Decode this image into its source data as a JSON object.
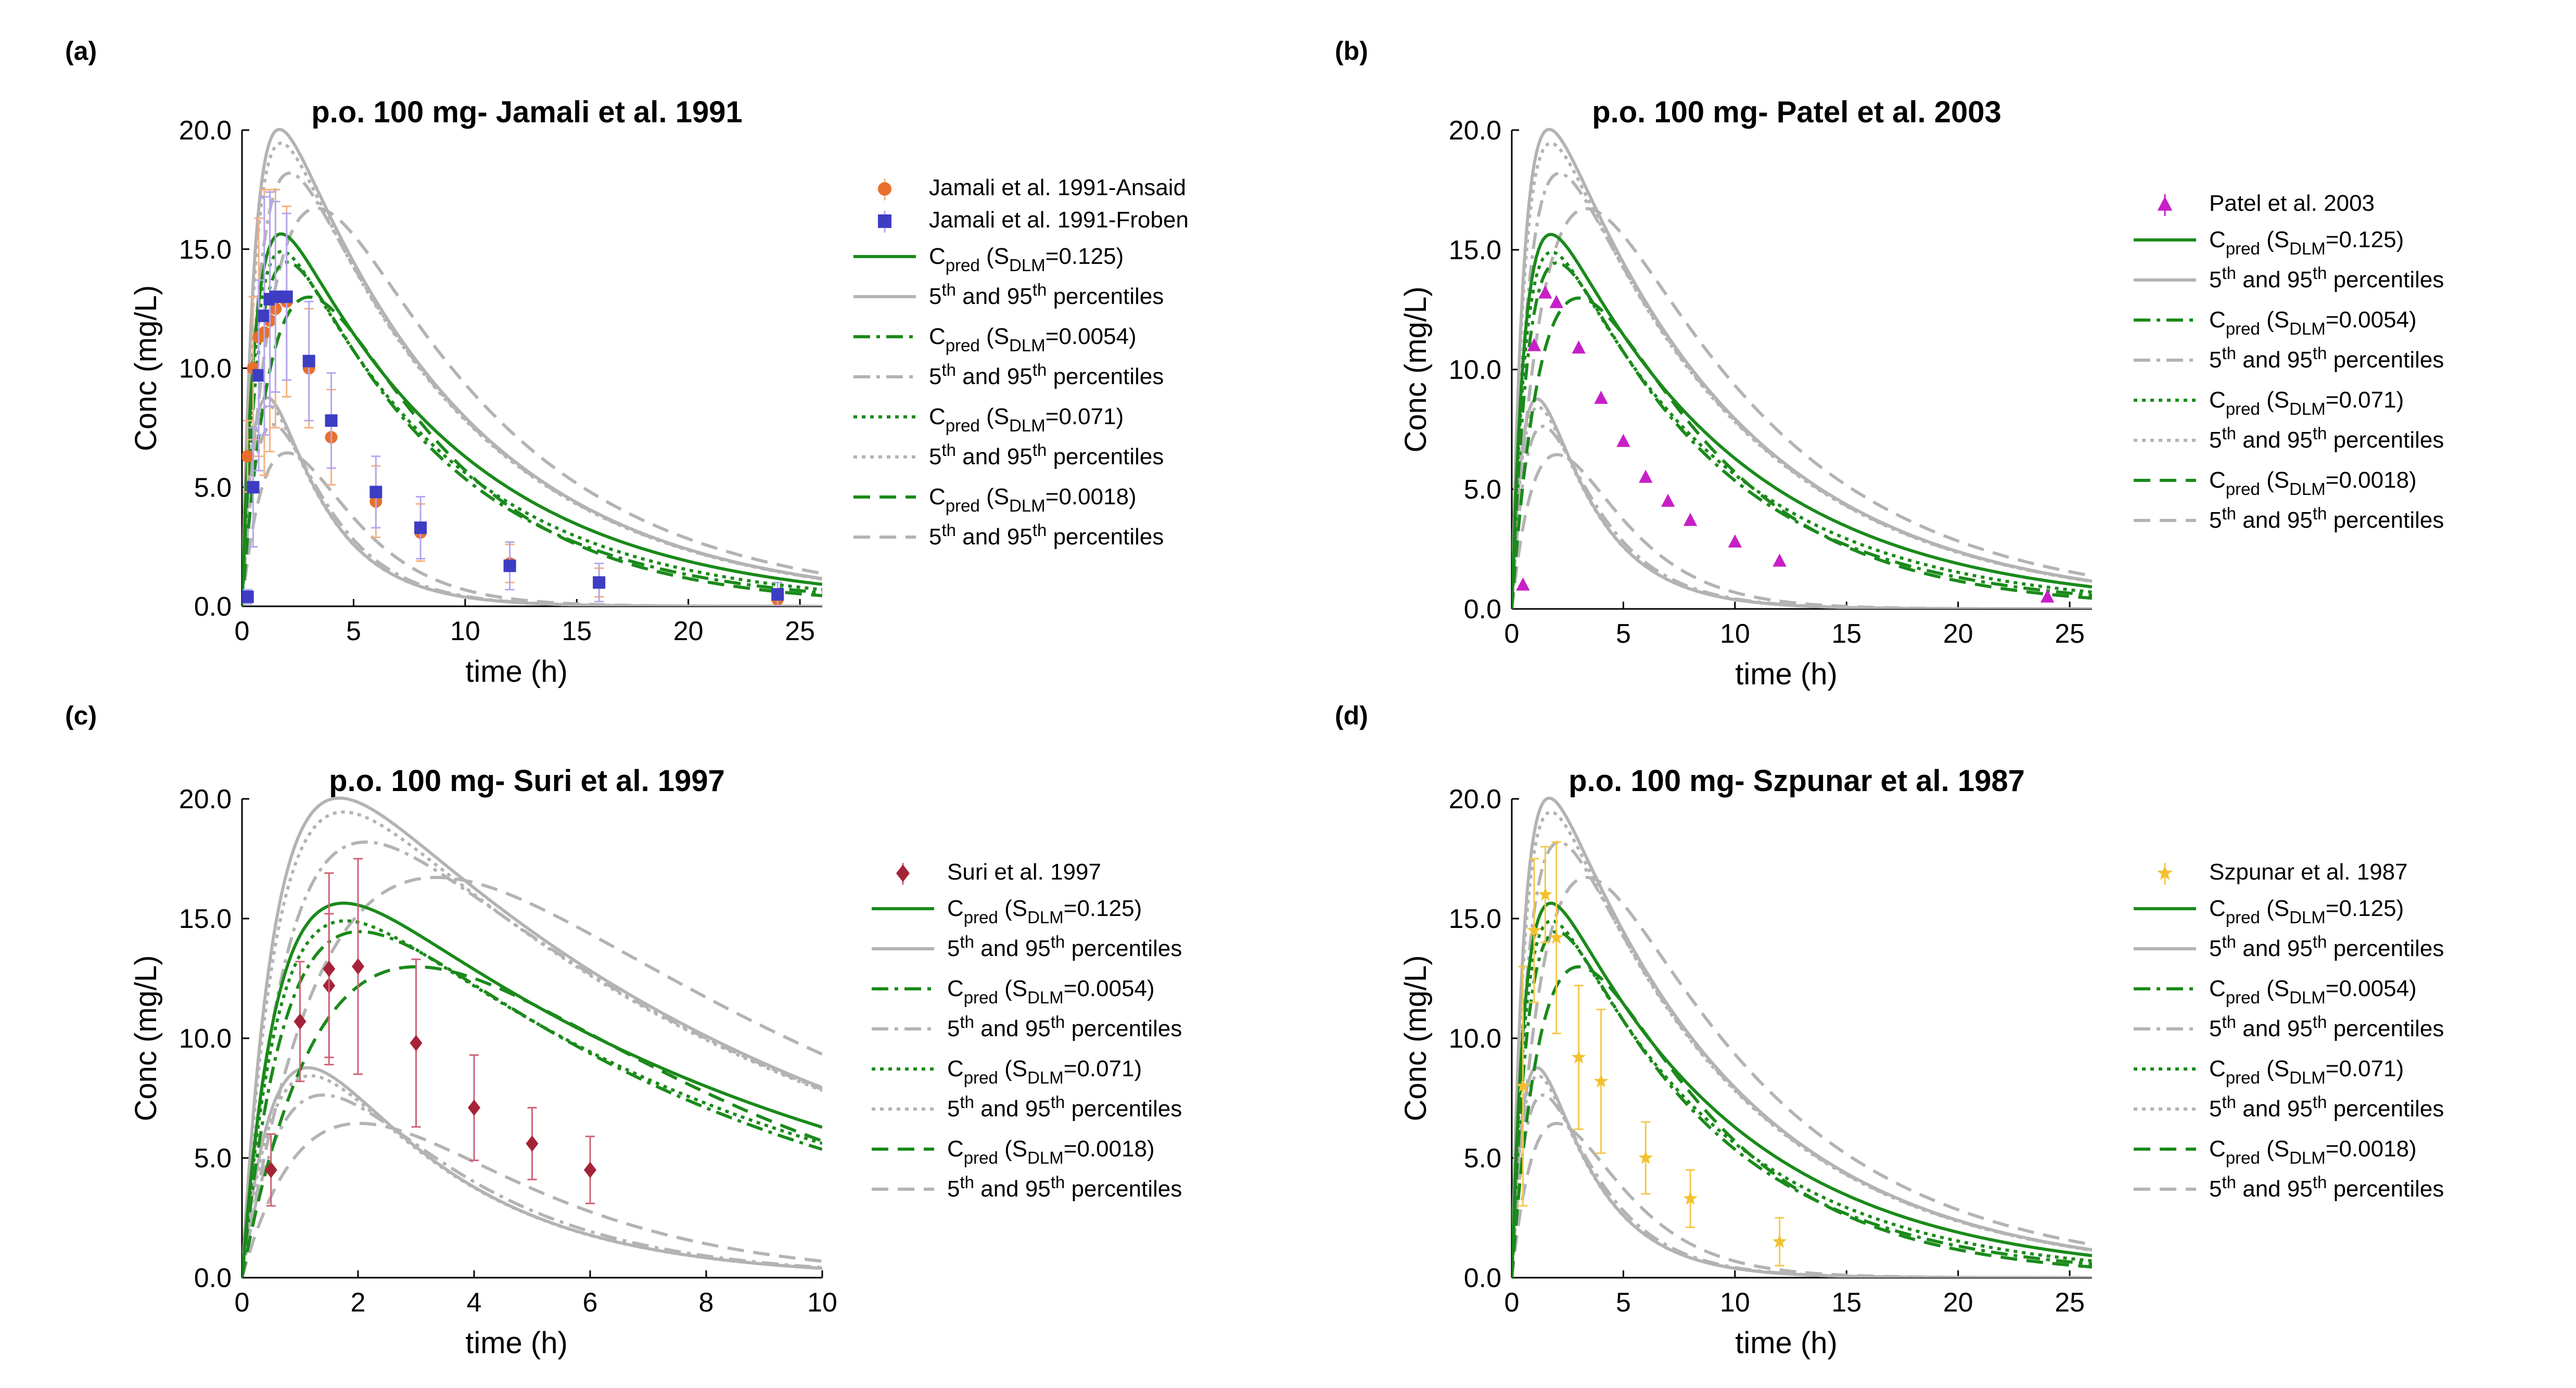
{
  "chart_data": [
    {
      "type": "line",
      "panel_label": "(a)",
      "title": "p.o. 100 mg- Jamali et al. 1991",
      "xlabel": "time (h)",
      "ylabel": "Conc (mg/L)",
      "xlim": [
        0,
        26
      ],
      "ylim": [
        0,
        20
      ],
      "x_ticks": [
        "0",
        "5",
        "10",
        "15",
        "20",
        "25"
      ],
      "y_ticks": [
        "0.0",
        "5.0",
        "10.0",
        "15.0",
        "20.0"
      ],
      "legend_position": "right",
      "observed": [
        {
          "name": "Jamali et al. 1991-Ansaid",
          "marker": "circle",
          "color": "#e8702a",
          "errcolor": "#f4b183",
          "points": [
            [
              0.25,
              6.3,
              1.5
            ],
            [
              0.5,
              10.0,
              3.0
            ],
            [
              0.75,
              11.3,
              5.0
            ],
            [
              1.0,
              11.5,
              6.0
            ],
            [
              1.25,
              12.0,
              5.5
            ],
            [
              1.5,
              12.5,
              5.0
            ],
            [
              2,
              12.8,
              4.0
            ],
            [
              3,
              10.0,
              2.5
            ],
            [
              4,
              7.1,
              2.0
            ],
            [
              6,
              4.4,
              1.5
            ],
            [
              8,
              3.1,
              1.2
            ],
            [
              12,
              1.8,
              0.8
            ],
            [
              16,
              1.0,
              0.6
            ],
            [
              24,
              0.3,
              0.2
            ]
          ]
        },
        {
          "name": "Jamali et al. 1991-Froben",
          "marker": "square",
          "color": "#3d3dc4",
          "errcolor": "#b4a7f0",
          "points": [
            [
              0.25,
              0.4,
              0.3
            ],
            [
              0.5,
              5.0,
              2.5
            ],
            [
              0.75,
              9.7,
              4.0
            ],
            [
              1.0,
              12.2,
              5.0
            ],
            [
              1.25,
              12.9,
              4.5
            ],
            [
              1.5,
              13.0,
              4.0
            ],
            [
              2,
              13.0,
              3.5
            ],
            [
              3,
              10.3,
              2.5
            ],
            [
              4,
              7.8,
              2.0
            ],
            [
              6,
              4.8,
              1.5
            ],
            [
              8,
              3.3,
              1.3
            ],
            [
              12,
              1.7,
              1.0
            ],
            [
              16,
              1.0,
              0.8
            ],
            [
              24,
              0.5,
              0.5
            ]
          ]
        }
      ],
      "series": [
        {
          "name": "C_pred (S_DLM=0.125)",
          "style": "solid",
          "color": "#1a8a1a",
          "ka": 1.6,
          "ke": 0.12,
          "A": 19.3
        },
        {
          "name": "5th and 95th percentiles",
          "style": "solid",
          "color": "#b3b3b3",
          "ka": 1.7,
          "ke": 0.12,
          "A": 24.5
        },
        {
          "name": "",
          "style": "solid",
          "color": "#b3b3b3",
          "ka": 1.7,
          "ke": 0.38,
          "A": 13.5
        },
        {
          "name": "C_pred (S_DLM=0.0054)",
          "style": "dashdot",
          "color": "#1a8a1a",
          "ka": 1.2,
          "ke": 0.14,
          "A": 19.2
        },
        {
          "name": "5th and 95th percentiles",
          "style": "dashdot",
          "color": "#b3b3b3",
          "ka": 1.2,
          "ke": 0.12,
          "A": 23.5
        },
        {
          "name": "",
          "style": "dashdot",
          "color": "#b3b3b3",
          "ka": 1.2,
          "ke": 0.38,
          "A": 13.0
        },
        {
          "name": "C_pred (S_DLM=0.071)",
          "style": "dotted",
          "color": "#1a8a1a",
          "ka": 1.5,
          "ke": 0.13,
          "A": 18.8
        },
        {
          "name": "5th and 95th percentiles",
          "style": "dotted",
          "color": "#b3b3b3",
          "ka": 1.6,
          "ke": 0.12,
          "A": 24.0
        },
        {
          "name": "",
          "style": "dotted",
          "color": "#b3b3b3",
          "ka": 1.6,
          "ke": 0.38,
          "A": 13.2
        },
        {
          "name": "C_pred (S_DLM=0.0018)",
          "style": "dashed",
          "color": "#1a8a1a",
          "ka": 0.6,
          "ke": 0.16,
          "A": 21.0
        },
        {
          "name": "5th and 95th percentiles",
          "style": "dashed",
          "color": "#b3b3b3",
          "ka": 0.6,
          "ke": 0.12,
          "A": 25.0
        },
        {
          "name": "",
          "style": "dashed",
          "color": "#b3b3b3",
          "ka": 0.6,
          "ke": 0.4,
          "A": 14.5
        }
      ]
    },
    {
      "type": "line",
      "panel_label": "(b)",
      "title": "p.o. 100 mg- Patel et al. 2003",
      "xlabel": "time (h)",
      "ylabel": "Conc (mg/L)",
      "xlim": [
        0,
        26
      ],
      "ylim": [
        0,
        20
      ],
      "x_ticks": [
        "0",
        "5",
        "10",
        "15",
        "20",
        "25"
      ],
      "y_ticks": [
        "0.0",
        "5.0",
        "10.0",
        "15.0",
        "20.0"
      ],
      "legend_position": "right",
      "observed": [
        {
          "name": "Patel et al. 2003",
          "marker": "triangle",
          "color": "#c71fc7",
          "errcolor": "#c71fc7",
          "points": [
            [
              0.5,
              1.0,
              0
            ],
            [
              1.0,
              11.0,
              0
            ],
            [
              1.5,
              13.2,
              0
            ],
            [
              2,
              12.8,
              0
            ],
            [
              3,
              10.9,
              0
            ],
            [
              4,
              8.8,
              0
            ],
            [
              5,
              7.0,
              0
            ],
            [
              6,
              5.5,
              0
            ],
            [
              7,
              4.5,
              0
            ],
            [
              8,
              3.7,
              0
            ],
            [
              10,
              2.8,
              0
            ],
            [
              12,
              2.0,
              0
            ],
            [
              24,
              0.5,
              0
            ]
          ]
        }
      ],
      "series": [
        {
          "name": "C_pred (S_DLM=0.125)",
          "style": "solid",
          "color": "#1a8a1a",
          "ka": 1.6,
          "ke": 0.12,
          "A": 19.3
        },
        {
          "name": "5th and 95th percentiles",
          "style": "solid",
          "color": "#b3b3b3",
          "ka": 1.7,
          "ke": 0.12,
          "A": 24.5
        },
        {
          "name": "",
          "style": "solid",
          "color": "#b3b3b3",
          "ka": 1.7,
          "ke": 0.38,
          "A": 13.5
        },
        {
          "name": "C_pred (S_DLM=0.0054)",
          "style": "dashdot",
          "color": "#1a8a1a",
          "ka": 1.2,
          "ke": 0.14,
          "A": 19.2
        },
        {
          "name": "5th and 95th percentiles",
          "style": "dashdot",
          "color": "#b3b3b3",
          "ka": 1.2,
          "ke": 0.12,
          "A": 23.5
        },
        {
          "name": "",
          "style": "dashdot",
          "color": "#b3b3b3",
          "ka": 1.2,
          "ke": 0.38,
          "A": 13.0
        },
        {
          "name": "C_pred (S_DLM=0.071)",
          "style": "dotted",
          "color": "#1a8a1a",
          "ka": 1.5,
          "ke": 0.13,
          "A": 18.8
        },
        {
          "name": "5th and 95th percentiles",
          "style": "dotted",
          "color": "#b3b3b3",
          "ka": 1.6,
          "ke": 0.12,
          "A": 24.0
        },
        {
          "name": "",
          "style": "dotted",
          "color": "#b3b3b3",
          "ka": 1.6,
          "ke": 0.38,
          "A": 13.2
        },
        {
          "name": "C_pred (S_DLM=0.0018)",
          "style": "dashed",
          "color": "#1a8a1a",
          "ka": 0.6,
          "ke": 0.16,
          "A": 21.0
        },
        {
          "name": "5th and 95th percentiles",
          "style": "dashed",
          "color": "#b3b3b3",
          "ka": 0.6,
          "ke": 0.12,
          "A": 25.0
        },
        {
          "name": "",
          "style": "dashed",
          "color": "#b3b3b3",
          "ka": 0.6,
          "ke": 0.4,
          "A": 14.5
        }
      ]
    },
    {
      "type": "line",
      "panel_label": "(c)",
      "title": "p.o. 100 mg- Suri et al. 1997",
      "xlabel": "time (h)",
      "ylabel": "Conc (mg/L)",
      "xlim": [
        0,
        10
      ],
      "ylim": [
        0,
        20
      ],
      "x_ticks": [
        "0",
        "2",
        "4",
        "6",
        "8",
        "10"
      ],
      "y_ticks": [
        "0.0",
        "5.0",
        "10.0",
        "15.0",
        "20.0"
      ],
      "legend_position": "right",
      "observed": [
        {
          "name": "Suri et al. 1997",
          "marker": "diamond",
          "color": "#a52336",
          "errcolor": "#cf6377",
          "points": [
            [
              0.5,
              4.5,
              1.5
            ],
            [
              1.0,
              10.7,
              2.5
            ],
            [
              1.5,
              12.2,
              3.0
            ],
            [
              1.5,
              12.9,
              4.0
            ],
            [
              2,
              13.0,
              4.5
            ],
            [
              3,
              9.8,
              3.5
            ],
            [
              4,
              7.1,
              2.2
            ],
            [
              5,
              5.6,
              1.5
            ],
            [
              6,
              4.5,
              1.4
            ]
          ]
        }
      ],
      "series": [
        {
          "name": "C_pred (S_DLM=0.125)",
          "style": "solid",
          "color": "#1a8a1a",
          "ka": 1.6,
          "ke": 0.12,
          "A": 19.3
        },
        {
          "name": "5th and 95th percentiles",
          "style": "solid",
          "color": "#b3b3b3",
          "ka": 1.7,
          "ke": 0.12,
          "A": 24.5
        },
        {
          "name": "",
          "style": "solid",
          "color": "#b3b3b3",
          "ka": 1.7,
          "ke": 0.38,
          "A": 13.5
        },
        {
          "name": "C_pred (S_DLM=0.0054)",
          "style": "dashdot",
          "color": "#1a8a1a",
          "ka": 1.2,
          "ke": 0.14,
          "A": 19.2
        },
        {
          "name": "5th and 95th percentiles",
          "style": "dashdot",
          "color": "#b3b3b3",
          "ka": 1.2,
          "ke": 0.12,
          "A": 23.5
        },
        {
          "name": "",
          "style": "dashdot",
          "color": "#b3b3b3",
          "ka": 1.2,
          "ke": 0.38,
          "A": 13.0
        },
        {
          "name": "C_pred (S_DLM=0.071)",
          "style": "dotted",
          "color": "#1a8a1a",
          "ka": 1.5,
          "ke": 0.13,
          "A": 18.8
        },
        {
          "name": "5th and 95th percentiles",
          "style": "dotted",
          "color": "#b3b3b3",
          "ka": 1.6,
          "ke": 0.12,
          "A": 24.0
        },
        {
          "name": "",
          "style": "dotted",
          "color": "#b3b3b3",
          "ka": 1.6,
          "ke": 0.38,
          "A": 13.2
        },
        {
          "name": "C_pred (S_DLM=0.0018)",
          "style": "dashed",
          "color": "#1a8a1a",
          "ka": 0.6,
          "ke": 0.16,
          "A": 21.0
        },
        {
          "name": "5th and 95th percentiles",
          "style": "dashed",
          "color": "#b3b3b3",
          "ka": 0.6,
          "ke": 0.12,
          "A": 25.0
        },
        {
          "name": "",
          "style": "dashed",
          "color": "#b3b3b3",
          "ka": 0.6,
          "ke": 0.4,
          "A": 14.5
        }
      ]
    },
    {
      "type": "line",
      "panel_label": "(d)",
      "title": "p.o. 100 mg- Szpunar et al. 1987",
      "xlabel": "time (h)",
      "ylabel": "Conc (mg/L)",
      "xlim": [
        0,
        26
      ],
      "ylim": [
        0,
        20
      ],
      "x_ticks": [
        "0",
        "5",
        "10",
        "15",
        "20",
        "25"
      ],
      "y_ticks": [
        "0.0",
        "5.0",
        "10.0",
        "15.0",
        "20.0"
      ],
      "legend_position": "right",
      "observed": [
        {
          "name": "Szpunar et al. 1987",
          "marker": "star",
          "color": "#f2c12e",
          "errcolor": "#f5c84a",
          "points": [
            [
              0.5,
              8.0,
              5.0
            ],
            [
              1.0,
              14.5,
              3.0
            ],
            [
              1.5,
              16.0,
              2.0
            ],
            [
              2,
              14.2,
              4.0
            ],
            [
              3,
              9.2,
              3.0
            ],
            [
              4,
              8.2,
              3.0
            ],
            [
              6,
              5.0,
              1.5
            ],
            [
              8,
              3.3,
              1.2
            ],
            [
              12,
              1.5,
              1.0
            ]
          ]
        }
      ],
      "series": [
        {
          "name": "C_pred (S_DLM=0.125)",
          "style": "solid",
          "color": "#1a8a1a",
          "ka": 1.6,
          "ke": 0.12,
          "A": 19.3
        },
        {
          "name": "5th and 95th percentiles",
          "style": "solid",
          "color": "#b3b3b3",
          "ka": 1.7,
          "ke": 0.12,
          "A": 24.5
        },
        {
          "name": "",
          "style": "solid",
          "color": "#b3b3b3",
          "ka": 1.7,
          "ke": 0.38,
          "A": 13.5
        },
        {
          "name": "C_pred (S_DLM=0.0054)",
          "style": "dashdot",
          "color": "#1a8a1a",
          "ka": 1.2,
          "ke": 0.14,
          "A": 19.2
        },
        {
          "name": "5th and 95th percentiles",
          "style": "dashdot",
          "color": "#b3b3b3",
          "ka": 1.2,
          "ke": 0.12,
          "A": 23.5
        },
        {
          "name": "",
          "style": "dashdot",
          "color": "#b3b3b3",
          "ka": 1.2,
          "ke": 0.38,
          "A": 13.0
        },
        {
          "name": "C_pred (S_DLM=0.071)",
          "style": "dotted",
          "color": "#1a8a1a",
          "ka": 1.5,
          "ke": 0.13,
          "A": 18.8
        },
        {
          "name": "5th and 95th percentiles",
          "style": "dotted",
          "color": "#b3b3b3",
          "ka": 1.6,
          "ke": 0.12,
          "A": 24.0
        },
        {
          "name": "",
          "style": "dotted",
          "color": "#b3b3b3",
          "ka": 1.6,
          "ke": 0.38,
          "A": 13.2
        },
        {
          "name": "C_pred (S_DLM=0.0018)",
          "style": "dashed",
          "color": "#1a8a1a",
          "ka": 0.6,
          "ke": 0.16,
          "A": 21.0
        },
        {
          "name": "5th and 95th percentiles",
          "style": "dashed",
          "color": "#b3b3b3",
          "ka": 0.6,
          "ke": 0.12,
          "A": 25.0
        },
        {
          "name": "",
          "style": "dashed",
          "color": "#b3b3b3",
          "ka": 0.6,
          "ke": 0.4,
          "A": 14.5
        }
      ]
    }
  ]
}
